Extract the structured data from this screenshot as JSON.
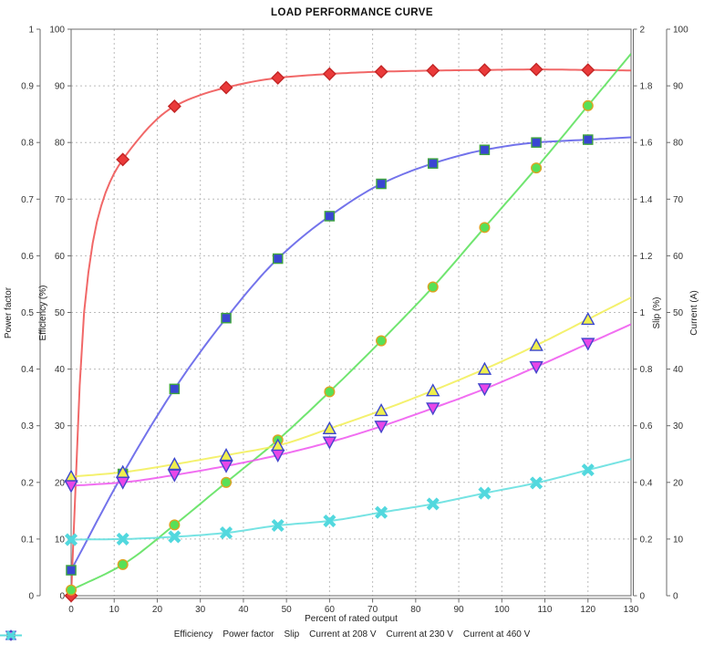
{
  "title": "LOAD PERFORMANCE CURVE",
  "colors": {
    "grid": "#bcbcbc",
    "axis": "#6b6b6b",
    "text": "#333333",
    "background": "#ffffff"
  },
  "chart_data": {
    "type": "line",
    "title": "LOAD PERFORMANCE CURVE",
    "xlabel": "Percent of rated output",
    "xlim": [
      0,
      130
    ],
    "x_tick_labels": [
      "0",
      "10",
      "20",
      "30",
      "40",
      "50",
      "60",
      "70",
      "80",
      "90",
      "100",
      "110",
      "120",
      "130"
    ],
    "grid": true,
    "legend_position": "bottom",
    "axes": {
      "power_factor": {
        "label": "Power factor",
        "range": [
          0,
          1
        ],
        "side": "left-outer",
        "tick_labels": [
          "0",
          "0.1",
          "0.2",
          "0.3",
          "0.4",
          "0.5",
          "0.6",
          "0.7",
          "0.8",
          "0.9",
          "1"
        ]
      },
      "efficiency": {
        "label": "Efficiency (%)",
        "range": [
          0,
          100
        ],
        "side": "left-inner",
        "tick_labels": [
          "0",
          "10",
          "20",
          "30",
          "40",
          "50",
          "60",
          "70",
          "80",
          "90",
          "100"
        ]
      },
      "slip": {
        "label": "Slip (%)",
        "range": [
          0,
          2
        ],
        "side": "right-inner",
        "tick_labels": [
          "0",
          "0.2",
          "0.4",
          "0.6",
          "0.8",
          "1",
          "1.2",
          "1.4",
          "1.6",
          "1.8",
          "2"
        ]
      },
      "current": {
        "label": "Current (A)",
        "range": [
          0,
          100
        ],
        "side": "right-outer",
        "tick_labels": [
          "0",
          "10",
          "20",
          "30",
          "40",
          "50",
          "60",
          "70",
          "80",
          "90",
          "100"
        ]
      }
    },
    "x": [
      0,
      12,
      24,
      36,
      48,
      60,
      72,
      84,
      96,
      108,
      120
    ],
    "series": [
      {
        "name": "Efficiency",
        "axis": "efficiency",
        "marker": "diamond",
        "line_color": "#ef4d4d",
        "marker_fill": "#ea3a3a",
        "marker_stroke": "#c32525",
        "values": [
          0,
          77,
          86.4,
          89.7,
          91.4,
          92.1,
          92.5,
          92.7,
          92.8,
          92.9,
          92.8
        ],
        "curve_extra_points": [
          [
            3,
            50
          ],
          [
            6,
            66
          ],
          [
            9,
            73
          ]
        ]
      },
      {
        "name": "Power factor",
        "axis": "power_factor",
        "marker": "square",
        "line_color": "#5a5ae8",
        "marker_fill": "#3a46d2",
        "marker_stroke": "#3fa53f",
        "values": [
          0.045,
          0.215,
          0.365,
          0.49,
          0.595,
          0.67,
          0.727,
          0.763,
          0.787,
          0.8,
          0.805
        ]
      },
      {
        "name": "Slip",
        "axis": "slip",
        "marker": "circle",
        "line_color": "#57e057",
        "marker_fill": "#57e057",
        "marker_stroke": "#dda322",
        "values": [
          0.02,
          0.11,
          0.25,
          0.4,
          0.55,
          0.72,
          0.9,
          1.09,
          1.3,
          1.51,
          1.73
        ]
      },
      {
        "name": "Current at 208 V",
        "axis": "current",
        "marker": "triangle-up",
        "line_color": "#f2ee55",
        "marker_fill": "#efef4c",
        "marker_stroke": "#3a46cf",
        "values": [
          21,
          21.8,
          23.2,
          24.8,
          26.5,
          29.5,
          32.7,
          36.2,
          40,
          44.2,
          48.8
        ]
      },
      {
        "name": "Current at 230 V",
        "axis": "current",
        "marker": "triangle-down",
        "line_color": "#ee55ee",
        "marker_fill": "#e846e8",
        "marker_stroke": "#4545cc",
        "values": [
          19.4,
          20,
          21.3,
          22.9,
          24.8,
          27.1,
          29.9,
          33.1,
          36.5,
          40.4,
          44.5
        ]
      },
      {
        "name": "Current at 460 V",
        "axis": "current",
        "marker": "x",
        "line_color": "#5edede",
        "marker_fill": "#52d8de",
        "marker_stroke": "#52d8de",
        "values": [
          9.9,
          10,
          10.4,
          11.1,
          12.4,
          13.2,
          14.7,
          16.2,
          18.1,
          19.9,
          22.2
        ]
      }
    ]
  }
}
